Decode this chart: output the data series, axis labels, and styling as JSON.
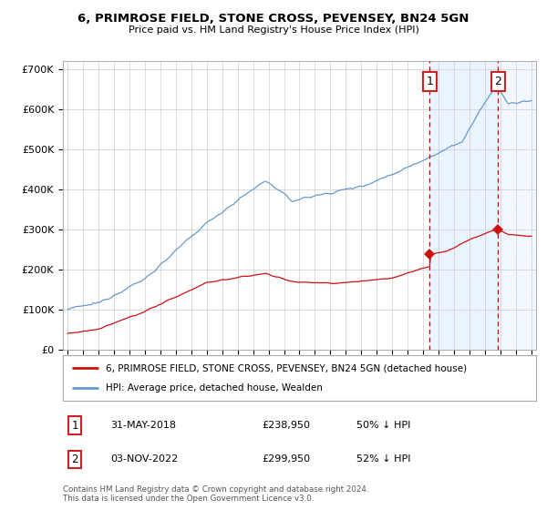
{
  "title": "6, PRIMROSE FIELD, STONE CROSS, PEVENSEY, BN24 5GN",
  "subtitle": "Price paid vs. HM Land Registry's House Price Index (HPI)",
  "ylim": [
    0,
    720000
  ],
  "yticks": [
    0,
    100000,
    200000,
    300000,
    400000,
    500000,
    600000,
    700000
  ],
  "ytick_labels": [
    "£0",
    "£100K",
    "£200K",
    "£300K",
    "£400K",
    "£500K",
    "£600K",
    "£700K"
  ],
  "xlim_left": 1994.7,
  "xlim_right": 2025.3,
  "sale1_date": 2018.42,
  "sale1_price": 238950,
  "sale1_label": "1",
  "sale2_date": 2022.84,
  "sale2_price": 299950,
  "sale2_label": "2",
  "legend_line1": "6, PRIMROSE FIELD, STONE CROSS, PEVENSEY, BN24 5GN (detached house)",
  "legend_line2": "HPI: Average price, detached house, Wealden",
  "footer1": "Contains HM Land Registry data © Crown copyright and database right 2024.",
  "footer2": "This data is licensed under the Open Government Licence v3.0.",
  "table_row1": [
    "1",
    "31-MAY-2018",
    "£238,950",
    "50% ↓ HPI"
  ],
  "table_row2": [
    "2",
    "03-NOV-2022",
    "£299,950",
    "52% ↓ HPI"
  ],
  "hpi_color": "#6699cc",
  "price_color": "#cc1111",
  "vline_color": "#cc0000",
  "shade_color": "#ddeeff",
  "bg_color": "#ffffff",
  "grid_color": "#cccccc",
  "box_edge_color": "#cc2222"
}
